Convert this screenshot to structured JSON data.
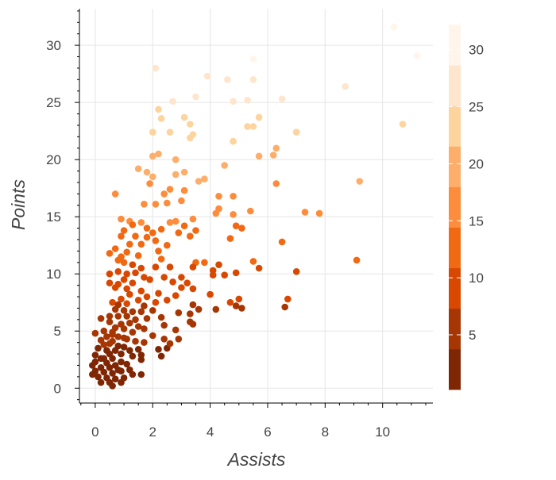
{
  "chart_data": {
    "type": "scatter",
    "title": "",
    "xlabel": "Assists",
    "ylabel": "Points",
    "xlim": [
      -0.55,
      11.75
    ],
    "ylim": [
      -1.3,
      33.2
    ],
    "x_ticks": [
      0,
      2,
      4,
      6,
      8,
      10
    ],
    "y_ticks": [
      0,
      5,
      10,
      15,
      20,
      25,
      30
    ],
    "grid": true,
    "color_by": "Points",
    "colorbar": {
      "range": [
        0.2,
        32.2
      ],
      "ticks": [
        5,
        10,
        15,
        20,
        25,
        30
      ],
      "palette": [
        "#7f2704",
        "#a63603",
        "#d94801",
        "#f16913",
        "#fd8d3c",
        "#fdae6b",
        "#fdd49e",
        "#fee6ce",
        "#fff5eb"
      ]
    },
    "points": [
      [
        10.4,
        31.6
      ],
      [
        11.2,
        29.1
      ],
      [
        5.5,
        28.8
      ],
      [
        2.1,
        28.0
      ],
      [
        3.9,
        27.3
      ],
      [
        4.6,
        27.0
      ],
      [
        5.5,
        27.0
      ],
      [
        8.7,
        26.4
      ],
      [
        3.5,
        25.5
      ],
      [
        2.7,
        25.1
      ],
      [
        4.8,
        25.1
      ],
      [
        5.3,
        25.2
      ],
      [
        6.5,
        25.3
      ],
      [
        2.2,
        24.4
      ],
      [
        3.1,
        23.7
      ],
      [
        5.7,
        23.7
      ],
      [
        2.3,
        23.6
      ],
      [
        3.3,
        23.1
      ],
      [
        10.7,
        23.1
      ],
      [
        5.5,
        22.9
      ],
      [
        5.3,
        22.9
      ],
      [
        2.0,
        22.4
      ],
      [
        2.6,
        22.4
      ],
      [
        7.0,
        22.4
      ],
      [
        3.4,
        22.2
      ],
      [
        3.3,
        21.9
      ],
      [
        4.8,
        21.6
      ],
      [
        6.3,
        21.0
      ],
      [
        2.0,
        20.3
      ],
      [
        2.2,
        20.5
      ],
      [
        2.8,
        20.0
      ],
      [
        6.2,
        20.4
      ],
      [
        5.7,
        20.3
      ],
      [
        4.5,
        19.5
      ],
      [
        1.5,
        19.2
      ],
      [
        2.8,
        18.7
      ],
      [
        3.1,
        18.9
      ],
      [
        1.8,
        18.9
      ],
      [
        2.0,
        18.5
      ],
      [
        3.8,
        18.3
      ],
      [
        3.6,
        18.1
      ],
      [
        9.2,
        18.1
      ],
      [
        1.9,
        17.9
      ],
      [
        6.3,
        17.9
      ],
      [
        2.6,
        17.4
      ],
      [
        0.7,
        17.0
      ],
      [
        3.1,
        17.3
      ],
      [
        2.4,
        17.0
      ],
      [
        4.3,
        16.8
      ],
      [
        4.8,
        16.8
      ],
      [
        3.0,
        16.4
      ],
      [
        1.7,
        16.1
      ],
      [
        2.1,
        16.1
      ],
      [
        2.5,
        16.2
      ],
      [
        4.3,
        15.7
      ],
      [
        4.2,
        15.3
      ],
      [
        4.8,
        15.2
      ],
      [
        5.4,
        15.5
      ],
      [
        7.3,
        15.4
      ],
      [
        7.8,
        15.3
      ],
      [
        0.9,
        14.8
      ],
      [
        1.2,
        14.6
      ],
      [
        1.6,
        14.5
      ],
      [
        2.8,
        14.6
      ],
      [
        3.4,
        14.8
      ],
      [
        3.1,
        14.2
      ],
      [
        2.6,
        14.5
      ],
      [
        1.3,
        14.3
      ],
      [
        1.8,
        14.0
      ],
      [
        2.3,
        13.9
      ],
      [
        1.0,
        13.8
      ],
      [
        2.0,
        13.6
      ],
      [
        2.9,
        13.6
      ],
      [
        3.5,
        13.8
      ],
      [
        4.9,
        14.2
      ],
      [
        5.1,
        14.0
      ],
      [
        0.9,
        13.3
      ],
      [
        1.4,
        13.3
      ],
      [
        1.8,
        13.2
      ],
      [
        3.3,
        13.3
      ],
      [
        2.1,
        12.9
      ],
      [
        4.7,
        13.1
      ],
      [
        1.2,
        12.6
      ],
      [
        1.6,
        12.6
      ],
      [
        2.5,
        12.5
      ],
      [
        0.7,
        12.2
      ],
      [
        1.1,
        11.9
      ],
      [
        2.2,
        12.0
      ],
      [
        6.5,
        12.8
      ],
      [
        1.5,
        11.6
      ],
      [
        0.9,
        11.5
      ],
      [
        0.5,
        11.8
      ],
      [
        0.8,
        11.2
      ],
      [
        2.3,
        11.3
      ],
      [
        1.0,
        11.0
      ],
      [
        1.3,
        10.8
      ],
      [
        3.5,
        11.0
      ],
      [
        3.8,
        11.0
      ],
      [
        3.4,
        10.6
      ],
      [
        4.3,
        10.8
      ],
      [
        5.5,
        11.1
      ],
      [
        9.1,
        11.2
      ],
      [
        1.6,
        10.5
      ],
      [
        2.1,
        10.6
      ],
      [
        2.6,
        10.6
      ],
      [
        0.5,
        10.0
      ],
      [
        0.8,
        10.2
      ],
      [
        1.1,
        10.0
      ],
      [
        1.4,
        10.1
      ],
      [
        2.4,
        9.7
      ],
      [
        3.0,
        9.7
      ],
      [
        1.7,
        9.7
      ],
      [
        4.1,
        10.3
      ],
      [
        4.5,
        9.9
      ],
      [
        4.1,
        9.9
      ],
      [
        4.9,
        10.1
      ],
      [
        5.7,
        10.5
      ],
      [
        0.5,
        9.2
      ],
      [
        0.8,
        9.1
      ],
      [
        1.0,
        9.5
      ],
      [
        1.3,
        9.2
      ],
      [
        1.9,
        9.5
      ],
      [
        2.7,
        9.3
      ],
      [
        3.2,
        9.2
      ],
      [
        0.7,
        8.8
      ],
      [
        1.1,
        8.7
      ],
      [
        1.6,
        8.5
      ],
      [
        3.0,
        8.8
      ],
      [
        3.4,
        8.7
      ],
      [
        7.0,
        10.2
      ],
      [
        1.2,
        8.2
      ],
      [
        1.8,
        8.0
      ],
      [
        2.2,
        8.3
      ],
      [
        2.8,
        8.1
      ],
      [
        4.0,
        8.2
      ],
      [
        0.9,
        7.8
      ],
      [
        1.5,
        7.7
      ],
      [
        2.5,
        7.7
      ],
      [
        0.6,
        7.5
      ],
      [
        0.8,
        7.3
      ],
      [
        1.1,
        7.4
      ],
      [
        2.1,
        7.5
      ],
      [
        3.4,
        7.3
      ],
      [
        1.7,
        7.2
      ],
      [
        4.7,
        7.5
      ],
      [
        5.0,
        7.8
      ],
      [
        6.7,
        7.8
      ],
      [
        0.7,
        6.9
      ],
      [
        1.0,
        6.8
      ],
      [
        1.3,
        6.7
      ],
      [
        1.6,
        6.7
      ],
      [
        2.0,
        6.8
      ],
      [
        2.9,
        6.6
      ],
      [
        3.3,
        6.5
      ],
      [
        0.5,
        6.3
      ],
      [
        0.8,
        6.3
      ],
      [
        1.1,
        6.3
      ],
      [
        1.4,
        6.0
      ],
      [
        1.8,
        6.1
      ],
      [
        2.3,
        6.2
      ],
      [
        3.6,
        6.9
      ],
      [
        4.2,
        6.9
      ],
      [
        0.2,
        6.1
      ],
      [
        0.5,
        5.8
      ],
      [
        0.9,
        5.6
      ],
      [
        1.2,
        5.7
      ],
      [
        1.5,
        5.4
      ],
      [
        2.4,
        5.5
      ],
      [
        4.9,
        7.2
      ],
      [
        5.1,
        7.0
      ],
      [
        6.6,
        7.1
      ],
      [
        0.7,
        5.3
      ],
      [
        1.0,
        5.2
      ],
      [
        1.7,
        5.2
      ],
      [
        2.8,
        5.1
      ],
      [
        3.3,
        5.8
      ],
      [
        0.3,
        5.0
      ],
      [
        0.6,
        4.9
      ],
      [
        1.3,
        4.9
      ],
      [
        2.0,
        4.6
      ],
      [
        -0.0,
        4.8
      ],
      [
        0.4,
        4.5
      ],
      [
        0.8,
        4.5
      ],
      [
        1.1,
        4.3
      ],
      [
        2.4,
        4.3
      ],
      [
        2.9,
        4.3
      ],
      [
        3.4,
        5.6
      ],
      [
        0.2,
        4.2
      ],
      [
        0.6,
        4.1
      ],
      [
        1.4,
        4.1
      ],
      [
        1.7,
        4.0
      ],
      [
        0.3,
        3.8
      ],
      [
        0.5,
        3.9
      ],
      [
        0.8,
        3.7
      ],
      [
        1.0,
        3.6
      ],
      [
        2.5,
        3.5
      ],
      [
        0.1,
        3.5
      ],
      [
        0.4,
        3.3
      ],
      [
        0.7,
        3.3
      ],
      [
        1.2,
        3.3
      ],
      [
        1.5,
        3.4
      ],
      [
        2.2,
        3.4
      ],
      [
        2.6,
        3.9
      ],
      [
        0.5,
        3.0
      ],
      [
        0.9,
        3.0
      ],
      [
        1.3,
        2.8
      ],
      [
        1.6,
        2.9
      ],
      [
        2.3,
        2.8
      ],
      [
        -0.0,
        2.9
      ],
      [
        0.3,
        2.6
      ],
      [
        0.6,
        2.6
      ],
      [
        0.9,
        2.3
      ],
      [
        1.6,
        2.5
      ],
      [
        0.0,
        2.3
      ],
      [
        0.4,
        2.2
      ],
      [
        0.7,
        2.0
      ],
      [
        1.1,
        2.1
      ],
      [
        -0.1,
        2.0
      ],
      [
        0.2,
        1.8
      ],
      [
        0.5,
        1.8
      ],
      [
        0.8,
        1.6
      ],
      [
        1.2,
        1.6
      ],
      [
        0.0,
        1.5
      ],
      [
        0.3,
        1.4
      ],
      [
        0.6,
        1.3
      ],
      [
        -0.1,
        1.2
      ],
      [
        0.1,
        1.0
      ],
      [
        0.4,
        0.9
      ],
      [
        0.7,
        0.8
      ],
      [
        1.0,
        0.9
      ],
      [
        1.3,
        1.2
      ],
      [
        0.2,
        0.5
      ],
      [
        0.5,
        0.5
      ],
      [
        0.9,
        0.5
      ],
      [
        0.6,
        0.2
      ],
      [
        1.6,
        1.2
      ],
      [
        0.9,
        1.5
      ],
      [
        0.2,
        2.6
      ],
      [
        0.6,
        4.7
      ],
      [
        1.0,
        4.4
      ]
    ]
  }
}
